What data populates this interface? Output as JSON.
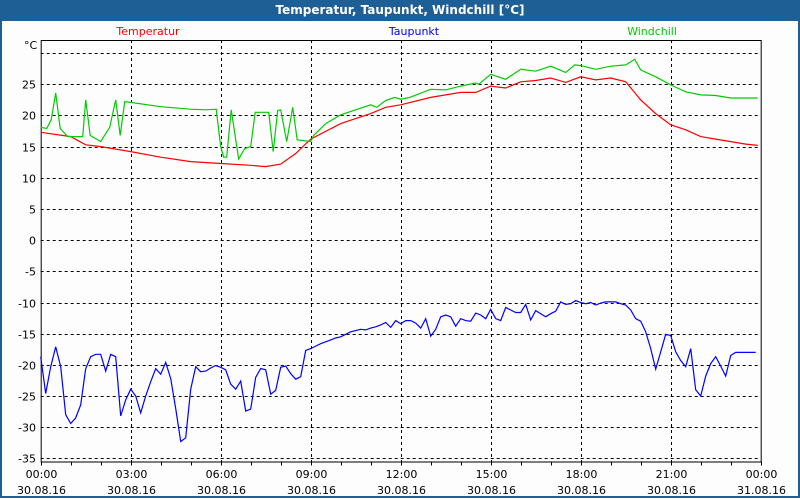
{
  "window": {
    "title": "Temperatur, Taupunkt, Windchill [°C]"
  },
  "chart_data": {
    "type": "line",
    "title": "Temperatur, Taupunkt, Windchill [°C]",
    "ylabel": "°C",
    "xlabel": "",
    "ylim": [
      -35.5,
      32.1
    ],
    "xlim_hours": [
      0,
      24
    ],
    "grid": true,
    "y_ticks": [
      30,
      25,
      20,
      15,
      10,
      5,
      0,
      -5,
      -10,
      -15,
      -20,
      -25,
      -30,
      -35
    ],
    "y_tick_labels": [
      "",
      "25",
      "20",
      "15",
      "10",
      "5",
      "0",
      "-5",
      "-10",
      "-15",
      "-20",
      "-25",
      "-30",
      "-35"
    ],
    "x_ticks": [
      {
        "hour": 0,
        "time": "00:00",
        "date": "30.08.16"
      },
      {
        "hour": 3,
        "time": "03:00",
        "date": "30.08.16"
      },
      {
        "hour": 6,
        "time": "06:00",
        "date": "30.08.16"
      },
      {
        "hour": 9,
        "time": "09:00",
        "date": "30.08.16"
      },
      {
        "hour": 12,
        "time": "12:00",
        "date": "30.08.16"
      },
      {
        "hour": 15,
        "time": "15:00",
        "date": "30.08.16"
      },
      {
        "hour": 18,
        "time": "18:00",
        "date": "30.08.16"
      },
      {
        "hour": 21,
        "time": "21:00",
        "date": "30.08.16"
      },
      {
        "hour": 24,
        "time": "00:00",
        "date": "31.08.16"
      }
    ],
    "series": [
      {
        "name": "Temperatur",
        "color": "#ff0000",
        "legend_position": "top-left",
        "points": [
          [
            0,
            17.3
          ],
          [
            1,
            16.6
          ],
          [
            1.5,
            15.3
          ],
          [
            2,
            15.0
          ],
          [
            3,
            14.2
          ],
          [
            4,
            13.3
          ],
          [
            5,
            12.6
          ],
          [
            6,
            12.3
          ],
          [
            7,
            12.0
          ],
          [
            7.5,
            11.8
          ],
          [
            8,
            12.2
          ],
          [
            8.5,
            13.9
          ],
          [
            9,
            16.2
          ],
          [
            10,
            18.7
          ],
          [
            11,
            20.3
          ],
          [
            11.5,
            21.3
          ],
          [
            12,
            21.7
          ],
          [
            13,
            22.9
          ],
          [
            14,
            23.7
          ],
          [
            14.5,
            23.7
          ],
          [
            15,
            24.7
          ],
          [
            15.5,
            24.4
          ],
          [
            16,
            25.4
          ],
          [
            16.5,
            25.6
          ],
          [
            17,
            26.0
          ],
          [
            17.5,
            25.3
          ],
          [
            18,
            26.2
          ],
          [
            18.5,
            25.7
          ],
          [
            19,
            26.0
          ],
          [
            19.5,
            25.4
          ],
          [
            20,
            22.5
          ],
          [
            20.5,
            20.3
          ],
          [
            21,
            18.5
          ],
          [
            21.5,
            17.7
          ],
          [
            22,
            16.6
          ],
          [
            22.5,
            16.2
          ],
          [
            23,
            15.8
          ],
          [
            23.5,
            15.4
          ],
          [
            23.9,
            15.2
          ]
        ]
      },
      {
        "name": "Taupunkt",
        "color": "#0000ff",
        "legend_position": "top-center",
        "interval_minutes": 10,
        "values": [
          -18.7,
          -24.6,
          -20.3,
          -17.1,
          -20.3,
          -28.0,
          -29.4,
          -28.5,
          -26.4,
          -20.6,
          -18.7,
          -18.3,
          -18.3,
          -21.0,
          -18.3,
          -18.7,
          -28.2,
          -25.6,
          -23.9,
          -25.0,
          -27.7,
          -25.0,
          -22.7,
          -20.6,
          -21.5,
          -19.6,
          -22.2,
          -27.0,
          -32.3,
          -31.7,
          -23.9,
          -20.3,
          -21.1,
          -21.0,
          -20.5,
          -20.1,
          -20.4,
          -20.8,
          -23.1,
          -23.9,
          -22.6,
          -27.4,
          -27.1,
          -22.0,
          -20.6,
          -20.8,
          -24.7,
          -24.1,
          -20.4,
          -20.2,
          -21.4,
          -22.3,
          -21.9,
          -17.7,
          -17.4,
          -17.0,
          -16.6,
          -16.3,
          -16.0,
          -15.7,
          -15.5,
          -15.1,
          -14.7,
          -14.5,
          -14.3,
          -14.4,
          -14.1,
          -13.9,
          -13.6,
          -13.2,
          -14.0,
          -12.9,
          -13.4,
          -12.9,
          -12.9,
          -13.3,
          -14.1,
          -12.6,
          -15.4,
          -14.3,
          -12.3,
          -12.0,
          -12.3,
          -13.8,
          -12.6,
          -12.9,
          -13.0,
          -11.7,
          -12.0,
          -12.6,
          -11.1,
          -12.6,
          -12.9,
          -10.8,
          -11.2,
          -11.6,
          -11.6,
          -10.3,
          -12.8,
          -11.3,
          -11.8,
          -12.3,
          -11.8,
          -11.4,
          -9.9,
          -10.3,
          -10.2,
          -9.7,
          -10.0,
          -10.2,
          -10.0,
          -10.4,
          -10.1,
          -9.9,
          -9.9,
          -9.9,
          -10.2,
          -10.4,
          -11.2,
          -12.6,
          -13.0,
          -14.7,
          -17.4,
          -20.7,
          -17.9,
          -15.1,
          -15.3,
          -17.9,
          -19.3,
          -20.3,
          -17.4,
          -24.0,
          -25.0,
          -21.8,
          -19.8,
          -18.7,
          -20.2,
          -21.8,
          -18.5,
          -18.0,
          -18.0,
          -18.0,
          -18.0,
          -18.0
        ]
      },
      {
        "name": "Windchill",
        "color": "#00cc00",
        "legend_position": "top-right",
        "points": [
          [
            0,
            18.1
          ],
          [
            0.2,
            17.9
          ],
          [
            0.35,
            19.3
          ],
          [
            0.5,
            23.6
          ],
          [
            0.65,
            17.9
          ],
          [
            0.9,
            16.6
          ],
          [
            1.2,
            16.6
          ],
          [
            1.4,
            16.6
          ],
          [
            1.5,
            22.5
          ],
          [
            1.65,
            16.8
          ],
          [
            2.0,
            15.8
          ],
          [
            2.3,
            18.1
          ],
          [
            2.5,
            22.5
          ],
          [
            2.65,
            16.8
          ],
          [
            2.8,
            22.2
          ],
          [
            3,
            22.1
          ],
          [
            4,
            21.4
          ],
          [
            5,
            21.0
          ],
          [
            5.5,
            20.9
          ],
          [
            5.85,
            21.0
          ],
          [
            6,
            15.0
          ],
          [
            6.1,
            13.3
          ],
          [
            6.2,
            13.3
          ],
          [
            6.35,
            20.9
          ],
          [
            6.6,
            13.0
          ],
          [
            6.8,
            14.7
          ],
          [
            7,
            15.0
          ],
          [
            7.15,
            20.5
          ],
          [
            7.6,
            20.5
          ],
          [
            7.75,
            14.2
          ],
          [
            7.9,
            20.8
          ],
          [
            8.0,
            20.9
          ],
          [
            8.2,
            15.8
          ],
          [
            8.4,
            21.3
          ],
          [
            8.55,
            16.1
          ],
          [
            9,
            15.8
          ],
          [
            9.1,
            16.8
          ],
          [
            9.5,
            18.7
          ],
          [
            10,
            20.1
          ],
          [
            10.5,
            20.9
          ],
          [
            11,
            21.7
          ],
          [
            11.2,
            21.3
          ],
          [
            11.5,
            22.4
          ],
          [
            11.8,
            22.9
          ],
          [
            12,
            22.6
          ],
          [
            12.3,
            22.9
          ],
          [
            13,
            24.2
          ],
          [
            13.5,
            24.1
          ],
          [
            14,
            24.7
          ],
          [
            14.5,
            25.2
          ],
          [
            14.6,
            25.0
          ],
          [
            15,
            26.6
          ],
          [
            15.5,
            25.8
          ],
          [
            16,
            27.4
          ],
          [
            16.5,
            27.1
          ],
          [
            17,
            27.9
          ],
          [
            17.5,
            26.9
          ],
          [
            17.8,
            28.1
          ],
          [
            18,
            28.0
          ],
          [
            18.5,
            27.4
          ],
          [
            19,
            27.9
          ],
          [
            19.5,
            28.1
          ],
          [
            19.8,
            29.0
          ],
          [
            20,
            27.3
          ],
          [
            20.5,
            26.2
          ],
          [
            21,
            24.9
          ],
          [
            21.5,
            23.8
          ],
          [
            22,
            23.3
          ],
          [
            22.5,
            23.2
          ],
          [
            23,
            22.8
          ],
          [
            23.9,
            22.8
          ]
        ]
      }
    ]
  }
}
